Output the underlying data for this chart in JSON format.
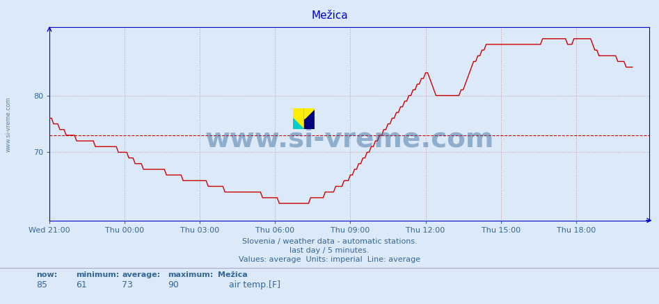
{
  "title": "Mežica",
  "title_color": "#0000cc",
  "bg_color": "#dce9f8",
  "plot_bg_color": "#dce9f8",
  "line_color": "#cc0000",
  "line_width": 1.0,
  "avg_line_color": "#cc0000",
  "avg_line_value": 73,
  "y_min": 58,
  "y_max": 92,
  "y_ticks": [
    70,
    80
  ],
  "x_labels": [
    "Wed 21:00",
    "Thu 00:00",
    "Thu 03:00",
    "Thu 06:00",
    "Thu 09:00",
    "Thu 12:00",
    "Thu 15:00",
    "Thu 18:00"
  ],
  "x_tick_positions": [
    0,
    36,
    72,
    108,
    144,
    180,
    216,
    252
  ],
  "total_points": 288,
  "grid_color": "#cc9999",
  "grid_style": ":",
  "axis_color": "#0000cc",
  "tick_color": "#336699",
  "label_color": "#336699",
  "watermark_text": "www.si-vreme.com",
  "watermark_color": "#336699",
  "watermark_alpha": 0.45,
  "watermark_fontsize": 28,
  "footer_line1": "Slovenia / weather data - automatic stations.",
  "footer_line2": "last day / 5 minutes.",
  "footer_line3": "Values: average  Units: imperial  Line: average",
  "footer_color": "#336699",
  "footer_fontsize": 8,
  "stats_labels": [
    "now:",
    "minimum:",
    "average:",
    "maximum:",
    "Mežica"
  ],
  "stats_values": [
    "85",
    "61",
    "73",
    "90"
  ],
  "stats_color": "#336699",
  "legend_label": "air temp.[F]",
  "legend_color": "#cc0000",
  "ylabel_text": "www.si-vreme.com",
  "ylabel_color": "#336699",
  "temperature_data": [
    76,
    76,
    75,
    75,
    75,
    74,
    74,
    74,
    73,
    73,
    73,
    73,
    73,
    72,
    72,
    72,
    72,
    72,
    72,
    72,
    72,
    72,
    71,
    71,
    71,
    71,
    71,
    71,
    71,
    71,
    71,
    71,
    71,
    70,
    70,
    70,
    70,
    70,
    69,
    69,
    69,
    68,
    68,
    68,
    68,
    67,
    67,
    67,
    67,
    67,
    67,
    67,
    67,
    67,
    67,
    67,
    66,
    66,
    66,
    66,
    66,
    66,
    66,
    66,
    65,
    65,
    65,
    65,
    65,
    65,
    65,
    65,
    65,
    65,
    65,
    65,
    64,
    64,
    64,
    64,
    64,
    64,
    64,
    64,
    63,
    63,
    63,
    63,
    63,
    63,
    63,
    63,
    63,
    63,
    63,
    63,
    63,
    63,
    63,
    63,
    63,
    63,
    62,
    62,
    62,
    62,
    62,
    62,
    62,
    62,
    61,
    61,
    61,
    61,
    61,
    61,
    61,
    61,
    61,
    61,
    61,
    61,
    61,
    61,
    61,
    62,
    62,
    62,
    62,
    62,
    62,
    62,
    63,
    63,
    63,
    63,
    63,
    64,
    64,
    64,
    64,
    65,
    65,
    65,
    66,
    66,
    67,
    67,
    68,
    68,
    69,
    69,
    70,
    70,
    71,
    71,
    72,
    72,
    73,
    73,
    74,
    74,
    75,
    75,
    76,
    76,
    77,
    77,
    78,
    78,
    79,
    79,
    80,
    80,
    81,
    81,
    82,
    82,
    83,
    83,
    84,
    84,
    83,
    82,
    81,
    80,
    80,
    80,
    80,
    80,
    80,
    80,
    80,
    80,
    80,
    80,
    80,
    81,
    81,
    82,
    83,
    84,
    85,
    86,
    86,
    87,
    87,
    88,
    88,
    89,
    89,
    89,
    89,
    89,
    89,
    89,
    89,
    89,
    89,
    89,
    89,
    89,
    89,
    89,
    89,
    89,
    89,
    89,
    89,
    89,
    89,
    89,
    89,
    89,
    89,
    89,
    90,
    90,
    90,
    90,
    90,
    90,
    90,
    90,
    90,
    90,
    90,
    90,
    89,
    89,
    89,
    90,
    90,
    90,
    90,
    90,
    90,
    90,
    90,
    90,
    89,
    88,
    88,
    87,
    87,
    87,
    87,
    87,
    87,
    87,
    87,
    87,
    86,
    86,
    86,
    86,
    85,
    85,
    85,
    85
  ]
}
